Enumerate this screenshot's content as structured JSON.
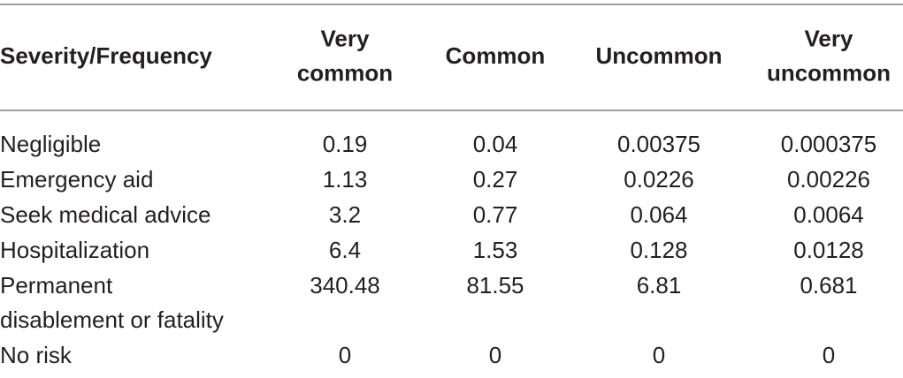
{
  "table": {
    "columns": [
      [
        "Severity/Frequency"
      ],
      [
        "Very",
        "common"
      ],
      [
        "Common"
      ],
      [
        "Uncommon"
      ],
      [
        "Very",
        "uncommon"
      ]
    ],
    "rows": [
      [
        [
          "Negligible"
        ],
        "0.19",
        "0.04",
        "0.00375",
        "0.000375"
      ],
      [
        [
          "Emergency aid"
        ],
        "1.13",
        "0.27",
        "0.0226",
        "0.00226"
      ],
      [
        [
          "Seek medical advice"
        ],
        "3.2",
        "0.77",
        "0.064",
        "0.0064"
      ],
      [
        [
          "Hospitalization"
        ],
        "6.4",
        "1.53",
        "0.128",
        "0.0128"
      ],
      [
        [
          "Permanent",
          "disablement or fatality"
        ],
        "340.48",
        "81.55",
        "6.81",
        "0.681"
      ],
      [
        [
          "No risk"
        ],
        "0",
        "0",
        "0",
        "0"
      ]
    ]
  }
}
